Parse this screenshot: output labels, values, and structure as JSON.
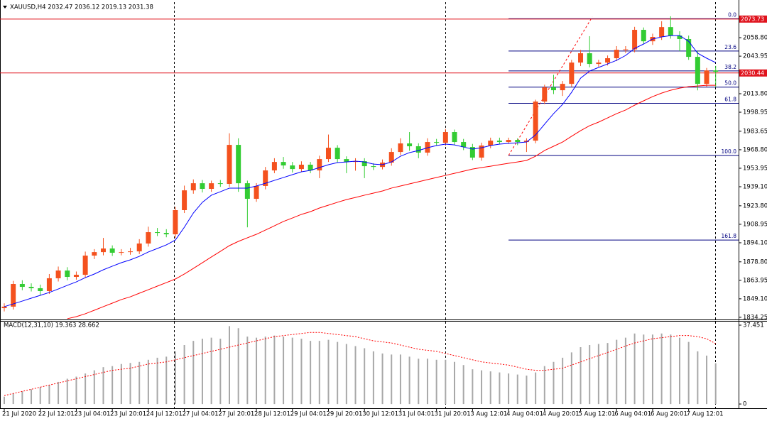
{
  "chart_data": {
    "type": "candlestick",
    "title": "XAUUSD,H4  2032.47 2036.12 2019.13 2031.38",
    "categories": [
      "21 Jul 2020",
      null,
      null,
      null,
      "22 Jul 12:01",
      null,
      null,
      null,
      "23 Jul 04:01",
      null,
      null,
      null,
      "23 Jul 20:01",
      null,
      null,
      null,
      "24 Jul 12:01",
      null,
      null,
      null,
      "27 Jul 04:01",
      null,
      null,
      null,
      "27 Jul 20:01",
      null,
      null,
      null,
      "28 Jul 12:01",
      null,
      null,
      null,
      "29 Jul 04:01",
      null,
      null,
      null,
      "29 Jul 20:01",
      null,
      null,
      null,
      "30 Jul 12:01",
      null,
      null,
      null,
      "31 Jul 04:01",
      null,
      null,
      null,
      "31 Jul 20:01",
      null,
      null,
      null,
      "3 Aug 12:01",
      null,
      null,
      null,
      "4 Aug 04:01",
      null,
      null,
      null,
      "4 Aug 20:01",
      null,
      null,
      null,
      "5 Aug 12:01",
      null,
      null,
      null,
      "6 Aug 04:01",
      null,
      null,
      null,
      "6 Aug 20:01",
      null,
      null,
      null,
      "7 Aug 12:01",
      null,
      null,
      null
    ],
    "open": [
      1841.6,
      1842.8,
      1861.0,
      1858.7,
      1857.6,
      1855.3,
      1865.6,
      1871.8,
      1866.7,
      1868.4,
      1883.8,
      1886.6,
      1889.5,
      1886.1,
      1886.6,
      1887.2,
      1893.5,
      1902.6,
      1902.0,
      1900.9,
      1920.3,
      1936.2,
      1941.9,
      1937.4,
      1941.9,
      1941.4,
      1972.7,
      1941.9,
      1929.4,
      1939.7,
      1952.2,
      1959.0,
      1956.2,
      1953.3,
      1956.8,
      1952.2,
      1961.3,
      1970.4,
      1961.3,
      1959.0,
      1959.6,
      1955.6,
      1955.0,
      1958.5,
      1967.0,
      1973.9,
      1971.6,
      1966.5,
      1975.0,
      1974.4,
      1983.0,
      1975.0,
      1971.0,
      1962.5,
      1972.2,
      1976.1,
      1975.0,
      1976.7,
      1975.0,
      1976.1,
      2007.5,
      2018.9,
      2016.6,
      2021.7,
      2038.8,
      2046.3,
      2037.7,
      2038.8,
      2042.3,
      2049.1,
      2049.4,
      2065.1,
      2055.9,
      2059.4,
      2067.3,
      2060.5,
      2057.7,
      2043.4,
      2021.7,
      2032.47
    ],
    "high": [
      1845.5,
      1863.5,
      1864.0,
      1861.5,
      1860.5,
      1869.0,
      1875.0,
      1874.5,
      1871.0,
      1887.0,
      1889.0,
      1898.0,
      1892.0,
      1889.0,
      1890.0,
      1897.0,
      1907.0,
      1906.0,
      1905.0,
      1923.0,
      1940.0,
      1945.0,
      1944.5,
      1944.0,
      1944.5,
      1982.0,
      1978.0,
      1944.0,
      1942.0,
      1955.0,
      1962.0,
      1963.0,
      1959.0,
      1959.5,
      1959.0,
      1964.0,
      1981.0,
      1972.5,
      1963.5,
      1962.0,
      1962.0,
      1958.0,
      1961.0,
      1970.0,
      1978.0,
      1983.0,
      1974.0,
      1978.0,
      1977.5,
      1985.5,
      1985.0,
      1977.5,
      1973.5,
      1974.5,
      1978.5,
      1978.5,
      1978.5,
      1978.0,
      1978.0,
      2009.0,
      2021.0,
      2029.0,
      2024.0,
      2041.0,
      2049.0,
      2060.0,
      2041.0,
      2044.5,
      2052.0,
      2052.0,
      2067.5,
      2067.0,
      2062.0,
      2072.0,
      2076.0,
      2064.0,
      2060.5,
      2048.0,
      2034.5,
      2036.12
    ],
    "low": [
      1839.0,
      1840.5,
      1856.0,
      1855.0,
      1852.0,
      1853.0,
      1863.0,
      1864.0,
      1864.5,
      1866.0,
      1881.0,
      1884.0,
      1883.5,
      1884.0,
      1884.5,
      1885.0,
      1891.0,
      1899.5,
      1898.5,
      1898.0,
      1918.0,
      1933.5,
      1934.5,
      1935.0,
      1939.0,
      1939.0,
      1935.0,
      1906.5,
      1927.0,
      1937.0,
      1950.0,
      1953.5,
      1950.5,
      1951.0,
      1950.0,
      1946.0,
      1959.0,
      1958.5,
      1950.0,
      1952.0,
      1946.0,
      1952.5,
      1953.0,
      1956.0,
      1964.5,
      1968.0,
      1962.0,
      1964.0,
      1972.0,
      1972.0,
      1972.5,
      1968.5,
      1960.5,
      1960.0,
      1970.0,
      1973.0,
      1973.5,
      1972.5,
      1967.0,
      1974.0,
      2005.5,
      2013.5,
      2012.0,
      2019.5,
      2036.0,
      2035.0,
      2035.5,
      2036.5,
      2040.0,
      2046.5,
      2047.0,
      2053.5,
      2053.0,
      2057.0,
      2058.0,
      2048.0,
      2041.0,
      2016.5,
      2019.5,
      2019.13
    ],
    "close": [
      1842.8,
      1861.0,
      1858.7,
      1857.6,
      1855.3,
      1865.6,
      1871.8,
      1866.7,
      1868.4,
      1883.8,
      1886.6,
      1889.5,
      1886.1,
      1886.6,
      1887.2,
      1893.5,
      1902.6,
      1902.0,
      1900.9,
      1920.3,
      1936.2,
      1941.9,
      1937.4,
      1941.9,
      1941.4,
      1972.7,
      1941.9,
      1929.4,
      1939.7,
      1952.2,
      1959.0,
      1956.2,
      1953.3,
      1956.8,
      1952.2,
      1961.3,
      1970.4,
      1961.3,
      1959.0,
      1959.6,
      1955.6,
      1955.0,
      1958.5,
      1967.0,
      1973.9,
      1971.6,
      1966.5,
      1975.0,
      1974.4,
      1983.0,
      1975.0,
      1971.0,
      1962.5,
      1972.2,
      1976.1,
      1975.0,
      1976.7,
      1975.0,
      1976.1,
      2007.5,
      2018.9,
      2016.6,
      2021.7,
      2038.8,
      2046.3,
      2037.7,
      2038.8,
      2042.3,
      2049.1,
      2049.4,
      2065.1,
      2055.9,
      2059.4,
      2067.3,
      2060.5,
      2057.7,
      2043.4,
      2021.7,
      2032.47,
      2031.38
    ],
    "up_color": "#f4511e",
    "down_color": "#33cc33",
    "ylim": [
      1832.5,
      2086.2
    ],
    "yticks": [
      {
        "value": 2058.8,
        "label": "2058.80"
      },
      2043.95,
      {
        "value": 2013.8,
        "label": "2013.80"
      },
      1998.95,
      1983.65,
      {
        "value": 1968.8,
        "label": "1968.80"
      },
      1953.95,
      {
        "value": 1939.1,
        "label": "1939.10"
      },
      {
        "value": 1923.8,
        "label": "1923.80"
      },
      1908.95,
      {
        "value": 1894.1,
        "label": "1894.10"
      },
      {
        "value": 1878.8,
        "label": "1878.80"
      },
      1863.95,
      {
        "value": 1849.1,
        "label": "1849.10"
      },
      1834.25
    ],
    "moving_averages": [
      {
        "color": "#0000ff",
        "values": [
          1842.8,
          1845.0,
          1847.3,
          1849.6,
          1851.9,
          1854.2,
          1857.0,
          1859.9,
          1862.7,
          1866.1,
          1869.0,
          1872.4,
          1875.3,
          1878.1,
          1880.4,
          1883.2,
          1886.7,
          1889.5,
          1892.4,
          1896.3,
          1906.6,
          1918.0,
          1926.6,
          1932.3,
          1935.1,
          1938.0,
          1938.0,
          1938.0,
          1939.7,
          1941.9,
          1944.2,
          1946.5,
          1948.8,
          1951.1,
          1952.2,
          1954.5,
          1956.8,
          1958.5,
          1959.0,
          1959.6,
          1959.0,
          1957.3,
          1956.8,
          1959.0,
          1963.6,
          1966.5,
          1968.2,
          1970.4,
          1972.2,
          1973.3,
          1972.7,
          1971.0,
          1969.3,
          1970.4,
          1972.2,
          1973.3,
          1973.9,
          1974.4,
          1975.0,
          1980.7,
          1989.3,
          1997.8,
          2005.2,
          2014.9,
          2026.3,
          2032.0,
          2034.9,
          2037.7,
          2040.6,
          2044.5,
          2050.2,
          2053.7,
          2057.7,
          2059.4,
          2060.5,
          2060.5,
          2055.9,
          2046.3,
          2042.3,
          2038.8
        ]
      },
      {
        "color": "#ff0000",
        "values": [
          null,
          null,
          null,
          null,
          null,
          null,
          null,
          1833.1,
          1834.8,
          1837.1,
          1839.9,
          1842.8,
          1845.6,
          1848.5,
          1850.7,
          1853.6,
          1856.4,
          1859.3,
          1862.1,
          1865.0,
          1869.0,
          1873.5,
          1878.1,
          1882.7,
          1887.2,
          1891.8,
          1895.2,
          1898.1,
          1900.9,
          1904.3,
          1907.7,
          1911.2,
          1914.0,
          1916.9,
          1919.1,
          1922.0,
          1924.3,
          1926.6,
          1928.8,
          1930.5,
          1932.3,
          1934.0,
          1935.7,
          1938.0,
          1939.7,
          1941.4,
          1943.1,
          1944.8,
          1946.5,
          1948.2,
          1949.9,
          1951.6,
          1953.3,
          1954.5,
          1955.6,
          1956.8,
          1957.9,
          1959.0,
          1960.2,
          1963.6,
          1968.2,
          1971.6,
          1975.0,
          1979.6,
          1984.1,
          1988.1,
          1991.0,
          1994.4,
          1997.8,
          2000.7,
          2004.6,
          2008.1,
          2011.5,
          2014.3,
          2016.6,
          2018.3,
          2019.5,
          2020.0,
          2020.6,
          2020.6
        ]
      }
    ],
    "price_lines": {
      "color": "#e0141e",
      "values": [
        2073.73,
        2030.44
      ]
    },
    "fibonacci": {
      "color": "#000080",
      "levels": [
        "0.0",
        "23.6",
        "38.2",
        "50.0",
        "61.8",
        "100.0",
        "161.8"
      ],
      "prices": [
        2074.0,
        2048.1,
        2032.1,
        2019.1,
        2006.1,
        1964.2,
        1896.3
      ],
      "trendline": {
        "x": [
          56,
          65.3
        ],
        "y": [
          1964.2,
          2075.5
        ]
      }
    },
    "macd": {
      "label": "MACD(12,31,10) 19.363 28.662",
      "ylim": [
        -2,
        38.8
      ],
      "yticks": [
        0,
        37.451
      ],
      "hist_color": "#a8a8a8",
      "signal_color": "#ff0000",
      "histogram": [
        3.5,
        5,
        6,
        7,
        8,
        9,
        10.5,
        12,
        13,
        14.5,
        16,
        17.5,
        18,
        19,
        19.5,
        20,
        21,
        22,
        22.5,
        25,
        28,
        30,
        31,
        31.5,
        31,
        37,
        36,
        32,
        31.5,
        32,
        32.5,
        32,
        31.5,
        31,
        30,
        30,
        30.5,
        29.5,
        28.5,
        27.5,
        26.5,
        25,
        24,
        23.5,
        23.5,
        22.5,
        21.5,
        21.5,
        21,
        21,
        20,
        18.5,
        16.5,
        16,
        15.5,
        15,
        14.5,
        14,
        13.5,
        15,
        18,
        20,
        22,
        24.5,
        27,
        28,
        28.5,
        29,
        30.5,
        31.5,
        33.5,
        33,
        33,
        33.5,
        33,
        31.5,
        29.5,
        25,
        23,
        19.363
      ],
      "signal": [
        4,
        5,
        6,
        7,
        8,
        9,
        10,
        11,
        12,
        13,
        14,
        15,
        16,
        16.5,
        17,
        18,
        19,
        19.5,
        20,
        21,
        22,
        23,
        24,
        25,
        26,
        27,
        28,
        29,
        30,
        31,
        32,
        32.5,
        33,
        33.5,
        34,
        34,
        33.5,
        33,
        32.5,
        32,
        31,
        30,
        29.5,
        29,
        28,
        27,
        26,
        25.5,
        25,
        24,
        23,
        22,
        21,
        20,
        19.5,
        19,
        18.5,
        17.5,
        16.5,
        16,
        16,
        16.5,
        17,
        18.5,
        20,
        21.5,
        23,
        24.5,
        26,
        27.5,
        29,
        30,
        31,
        31.5,
        32,
        32.5,
        32.5,
        32,
        31,
        28.662
      ]
    }
  }
}
